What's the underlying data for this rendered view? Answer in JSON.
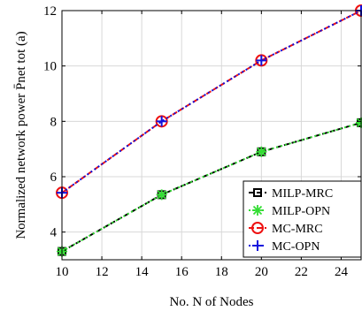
{
  "chart_data": {
    "type": "line",
    "xlabel": "No. N of Nodes",
    "ylabel": "Normalized network power P̄net tot (a)",
    "xlim": [
      10,
      25
    ],
    "ylim": [
      3,
      12
    ],
    "xticks": [
      10,
      12,
      14,
      16,
      18,
      20,
      22,
      24
    ],
    "yticks": [
      4,
      6,
      8,
      10,
      12
    ],
    "grid": true,
    "legend_position": "bottom-right",
    "series": [
      {
        "name": "MILP-MRC",
        "x": [
          10,
          15,
          20,
          25
        ],
        "values": [
          3.3,
          5.35,
          6.9,
          7.95
        ],
        "color": "#000000",
        "dash": "dashed",
        "marker": "square"
      },
      {
        "name": "MILP-OPN",
        "x": [
          10,
          15,
          20,
          25
        ],
        "values": [
          3.3,
          5.35,
          6.9,
          7.95
        ],
        "color": "#33dd33",
        "dash": "dotted",
        "marker": "asterisk"
      },
      {
        "name": "MC-MRC",
        "x": [
          10,
          15,
          20,
          25
        ],
        "values": [
          5.42,
          8.0,
          10.2,
          12.0
        ],
        "color": "#ee1111",
        "dash": "dashed",
        "marker": "circle"
      },
      {
        "name": "MC-OPN",
        "x": [
          10,
          15,
          20,
          25
        ],
        "values": [
          5.42,
          8.0,
          10.2,
          12.0
        ],
        "color": "#1111dd",
        "dash": "dotted",
        "marker": "plus"
      }
    ]
  }
}
